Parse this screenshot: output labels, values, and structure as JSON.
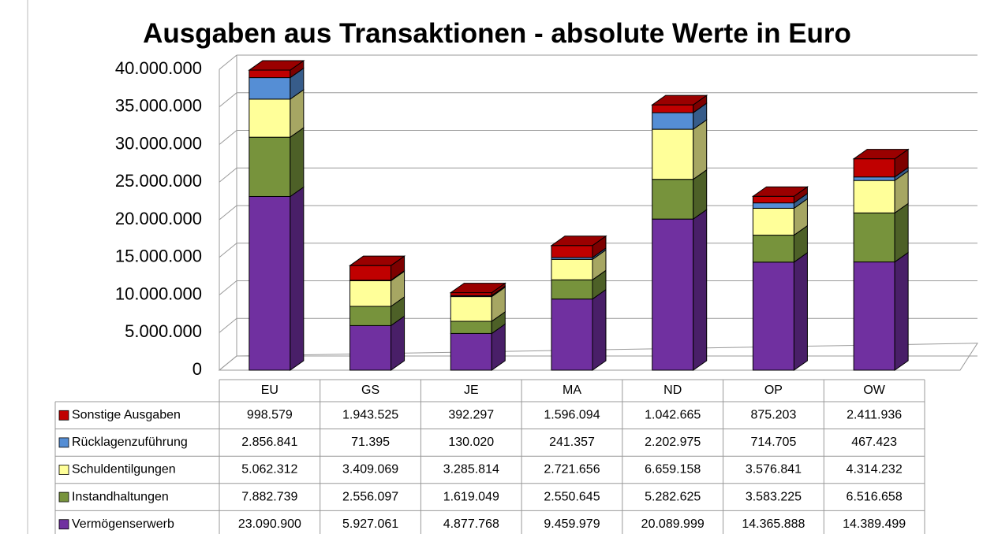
{
  "chart_data": {
    "type": "bar",
    "stacked": true,
    "title": "Ausgaben aus Transaktionen - absolute Werte in Euro",
    "categories": [
      "EU",
      "GS",
      "JE",
      "MA",
      "ND",
      "OP",
      "OW"
    ],
    "series": [
      {
        "name": "Sonstige Ausgaben",
        "color": "#c00000",
        "values": [
          998579,
          1943525,
          392297,
          1596094,
          1042665,
          875203,
          2411936
        ],
        "value_labels": [
          "998.579",
          "1.943.525",
          "392.297",
          "1.596.094",
          "1.042.665",
          "875.203",
          "2.411.936"
        ]
      },
      {
        "name": "Rücklagenzuführung",
        "color": "#558ed5",
        "values": [
          2856841,
          71395,
          130020,
          241357,
          2202975,
          714705,
          467423
        ],
        "value_labels": [
          "2.856.841",
          "71.395",
          "130.020",
          "241.357",
          "2.202.975",
          "714.705",
          "467.423"
        ]
      },
      {
        "name": "Schuldentilgungen",
        "color": "#ffff99",
        "values": [
          5062312,
          3409069,
          3285814,
          2721656,
          6659158,
          3576841,
          4314232
        ],
        "value_labels": [
          "5.062.312",
          "3.409.069",
          "3.285.814",
          "2.721.656",
          "6.659.158",
          "3.576.841",
          "4.314.232"
        ]
      },
      {
        "name": "Instandhaltungen",
        "color": "#77933c",
        "values": [
          7882739,
          2556097,
          1619049,
          2550645,
          5282625,
          3583225,
          6516658
        ],
        "value_labels": [
          "7.882.739",
          "2.556.097",
          "1.619.049",
          "2.550.645",
          "5.282.625",
          "3.583.225",
          "6.516.658"
        ]
      },
      {
        "name": "Vermögenserwerb",
        "color": "#7030a0",
        "values": [
          23090900,
          5927061,
          4877768,
          9459979,
          20089999,
          14365888,
          14389499
        ],
        "value_labels": [
          "23.090.900",
          "5.927.061",
          "4.877.768",
          "9.459.979",
          "20.089.999",
          "14.365.888",
          "14.389.499"
        ]
      }
    ],
    "ylim": [
      0,
      40000000
    ],
    "yticks": [
      0,
      {
        "value": 5000000,
        "label": "5.000.000"
      },
      {
        "value": 10000000,
        "label": "10.000.000"
      },
      {
        "value": 15000000,
        "label": "15.000.000"
      },
      {
        "value": 20000000,
        "label": "20.000.000"
      },
      {
        "value": 25000000,
        "label": "25.000.000"
      },
      {
        "value": 30000000,
        "label": "30.000.000"
      },
      {
        "value": 35000000,
        "label": "35.000.000"
      },
      {
        "value": 40000000,
        "label": "40.000.000"
      }
    ],
    "grid": true
  }
}
